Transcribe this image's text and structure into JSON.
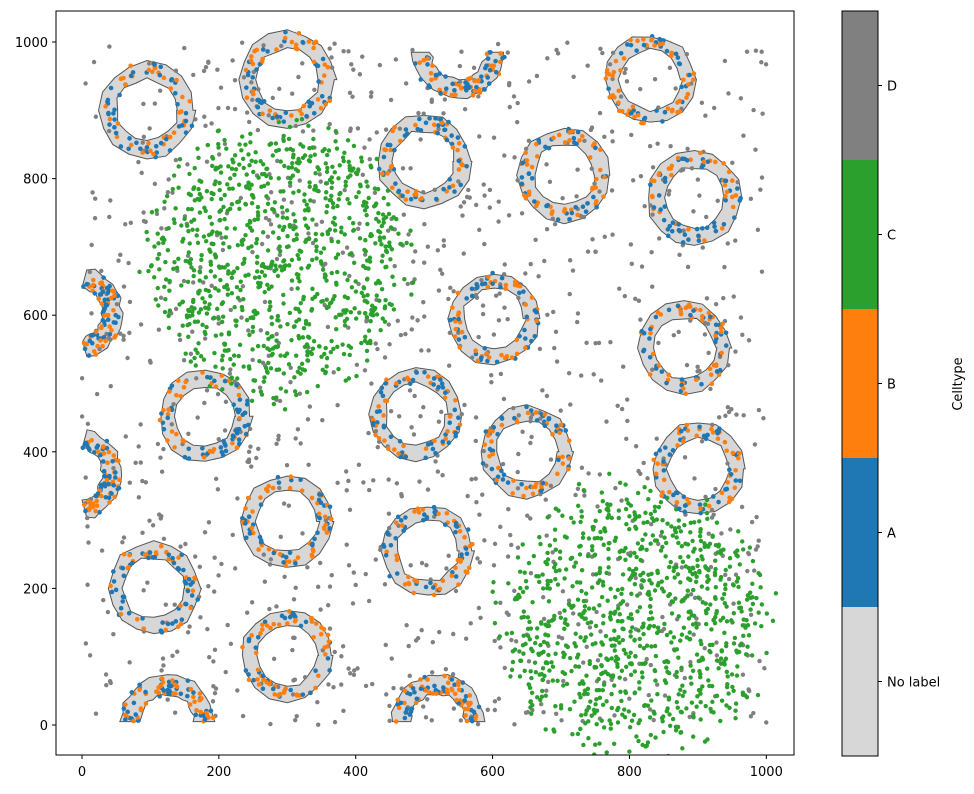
{
  "chart_data": {
    "type": "scatter",
    "title": "",
    "xlabel": "",
    "ylabel": "",
    "xlim": [
      -40,
      1040
    ],
    "ylim": [
      -45,
      1045
    ],
    "xticks": [
      0,
      200,
      400,
      600,
      800,
      1000
    ],
    "yticks": [
      0,
      200,
      400,
      600,
      800,
      1000
    ],
    "grid": false,
    "colorbar": {
      "label": "Celltype",
      "categories": [
        "No label",
        "A",
        "B",
        "C",
        "D"
      ],
      "colors": [
        "#d7d7d7",
        "#1f77b4",
        "#ff7f0e",
        "#2ca02c",
        "#808080"
      ]
    },
    "ring_structures": {
      "description": "Annular clusters of cell types A (blue) and B (orange) with grey convex-hull shaded regions",
      "full_rings": [
        {
          "cx": 95,
          "cy": 900,
          "r_in": 45,
          "r_out": 70
        },
        {
          "cx": 300,
          "cy": 945,
          "r_in": 45,
          "r_out": 70
        },
        {
          "cx": 830,
          "cy": 945,
          "r_in": 45,
          "r_out": 65
        },
        {
          "cx": 500,
          "cy": 825,
          "r_in": 45,
          "r_out": 68
        },
        {
          "cx": 705,
          "cy": 805,
          "r_in": 45,
          "r_out": 68
        },
        {
          "cx": 895,
          "cy": 772,
          "r_in": 45,
          "r_out": 68
        },
        {
          "cx": 602,
          "cy": 595,
          "r_in": 45,
          "r_out": 67
        },
        {
          "cx": 880,
          "cy": 552,
          "r_in": 45,
          "r_out": 67
        },
        {
          "cx": 180,
          "cy": 452,
          "r_in": 45,
          "r_out": 67
        },
        {
          "cx": 488,
          "cy": 455,
          "r_in": 45,
          "r_out": 67
        },
        {
          "cx": 650,
          "cy": 400,
          "r_in": 45,
          "r_out": 67
        },
        {
          "cx": 900,
          "cy": 375,
          "r_in": 45,
          "r_out": 67
        },
        {
          "cx": 300,
          "cy": 298,
          "r_in": 45,
          "r_out": 67
        },
        {
          "cx": 505,
          "cy": 255,
          "r_in": 45,
          "r_out": 67
        },
        {
          "cx": 105,
          "cy": 200,
          "r_in": 45,
          "r_out": 67
        },
        {
          "cx": 300,
          "cy": 102,
          "r_in": 45,
          "r_out": 67
        }
      ],
      "arcs": [
        {
          "cx": 550,
          "cy": 985,
          "r_in": 40,
          "r_out": 68,
          "start_deg": 180,
          "end_deg": 360
        },
        {
          "cx": -10,
          "cy": 603,
          "r_in": 40,
          "r_out": 68,
          "start_deg": -75,
          "end_deg": 75
        },
        {
          "cx": -10,
          "cy": 367,
          "r_in": 40,
          "r_out": 68,
          "start_deg": -75,
          "end_deg": 75
        },
        {
          "cx": 125,
          "cy": 5,
          "r_in": 40,
          "r_out": 68,
          "start_deg": 0,
          "end_deg": 180
        },
        {
          "cx": 520,
          "cy": 5,
          "r_in": 40,
          "r_out": 68,
          "start_deg": 0,
          "end_deg": 180
        }
      ]
    },
    "green_clusters": [
      {
        "label": "C",
        "cx": 290,
        "cy": 680,
        "radius": 190,
        "n": 900
      },
      {
        "label": "C",
        "cx": 805,
        "cy": 155,
        "radius": 190,
        "n": 900
      }
    ],
    "background": {
      "label": "D",
      "n": 1100,
      "range": [
        0,
        1000
      ]
    }
  },
  "axes": {
    "x_tick_labels": [
      "0",
      "200",
      "400",
      "600",
      "800",
      "1000"
    ],
    "y_tick_labels": [
      "0",
      "200",
      "400",
      "600",
      "800",
      "1000"
    ]
  }
}
